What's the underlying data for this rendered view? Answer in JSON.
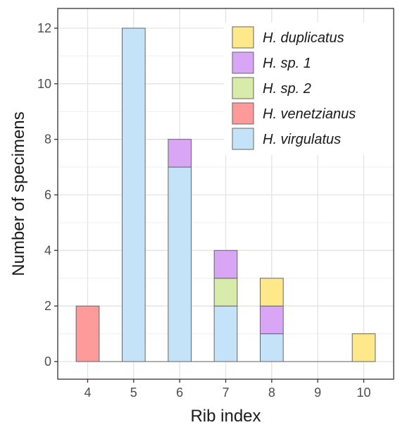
{
  "chart_data": {
    "type": "bar",
    "stacked": true,
    "title": "",
    "xlabel": "Rib index",
    "ylabel": "Number of specimens",
    "categories": [
      "4",
      "5",
      "6",
      "7",
      "8",
      "9",
      "10"
    ],
    "ylim": [
      0,
      12.6
    ],
    "yticks": [
      0,
      2,
      4,
      6,
      8,
      10,
      12
    ],
    "grid": true,
    "legend_position": "top-right",
    "stack_order": [
      "H. virgulatus",
      "H. venetzianus",
      "H. sp. 2",
      "H. sp. 1",
      "H. duplicatus"
    ],
    "legend_order": [
      "H. duplicatus",
      "H. sp. 1",
      "H. sp. 2",
      "H. venetzianus",
      "H. virgulatus"
    ],
    "series": [
      {
        "name": "H. duplicatus",
        "color": "#FFE88A",
        "values": [
          0,
          0,
          0,
          0,
          1,
          0,
          1
        ]
      },
      {
        "name": "H. sp. 1",
        "color": "#D9A6F5",
        "values": [
          0,
          0,
          1,
          1,
          1,
          0,
          0
        ]
      },
      {
        "name": "H. sp. 2",
        "color": "#D8EBAB",
        "values": [
          0,
          0,
          0,
          1,
          0,
          0,
          0
        ]
      },
      {
        "name": "H. venetzianus",
        "color": "#FF9A9A",
        "values": [
          2,
          0,
          0,
          0,
          0,
          0,
          0
        ]
      },
      {
        "name": "H. virgulatus",
        "color": "#C4E3F9",
        "values": [
          0,
          12,
          7,
          2,
          1,
          0,
          0
        ]
      }
    ]
  }
}
